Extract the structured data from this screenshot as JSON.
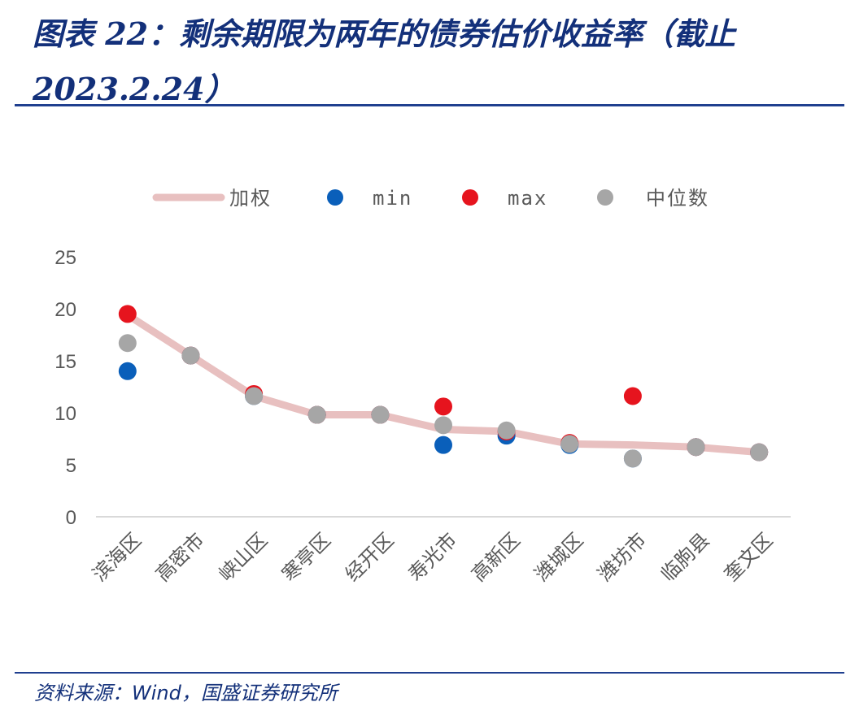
{
  "title": "图表 22：剩余期限为两年的债券估价收益率（截止 2023.2.24）",
  "source": "资料来源：Wind，国盛证券研究所",
  "chart_data": {
    "type": "line",
    "categories": [
      "滨海区",
      "高密市",
      "峡山区",
      "寒亭区",
      "经开区",
      "寿光市",
      "高新区",
      "潍城区",
      "潍坊市",
      "临朐县",
      "奎文区"
    ],
    "series": [
      {
        "name": "加权",
        "style": "line",
        "color": "#e8c0c0",
        "values": [
          19.4,
          15.5,
          11.6,
          9.8,
          9.8,
          8.4,
          8.2,
          7.0,
          6.9,
          6.7,
          6.2
        ]
      },
      {
        "name": "min",
        "style": "scatter",
        "color": "#0a5fba",
        "values": [
          14.0,
          15.5,
          11.6,
          9.8,
          9.8,
          6.9,
          7.8,
          6.9,
          5.6,
          6.7,
          6.2
        ]
      },
      {
        "name": "max",
        "style": "scatter",
        "color": "#e6141e",
        "values": [
          19.5,
          15.5,
          11.8,
          9.8,
          9.8,
          10.6,
          8.2,
          7.1,
          11.6,
          6.7,
          6.2
        ]
      },
      {
        "name": "中位数",
        "style": "scatter",
        "color": "#a6a6a6",
        "values": [
          16.7,
          15.5,
          11.6,
          9.8,
          9.8,
          8.8,
          8.3,
          7.0,
          5.6,
          6.7,
          6.2
        ]
      }
    ],
    "ylim": [
      0,
      25
    ],
    "yticks": [
      0,
      5,
      10,
      15,
      20,
      25
    ],
    "grid": false,
    "legend": "top"
  }
}
